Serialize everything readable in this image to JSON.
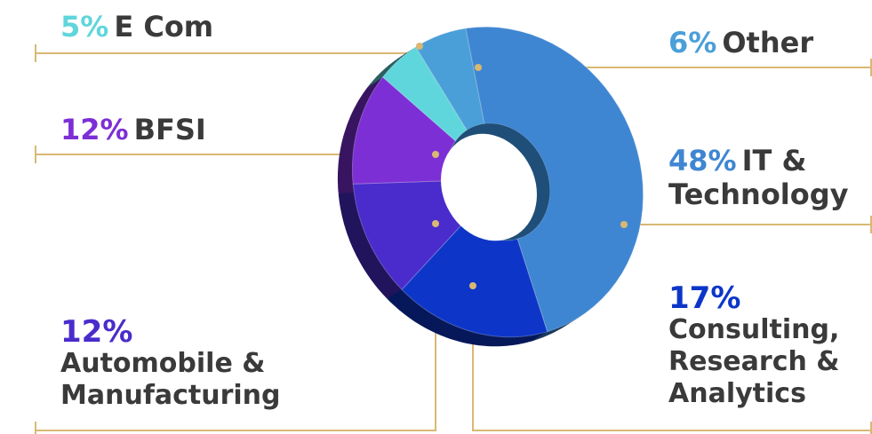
{
  "chart_data": {
    "type": "pie",
    "style": "3d-donut",
    "slices": [
      {
        "label": "E Com",
        "percent_label": "5%",
        "value": 5,
        "color": "#5fd6dc"
      },
      {
        "label": "Other",
        "percent_label": "6%",
        "value": 6,
        "color": "#4a9fd8"
      },
      {
        "label": "IT & Technology",
        "percent_label": "48%",
        "value": 48,
        "color": "#3f86d2"
      },
      {
        "label": "Consulting, Research & Analytics",
        "percent_label": "17%",
        "value": 17,
        "color": "#0d36c8"
      },
      {
        "label": "Automobile & Manufacturing",
        "percent_label": "12%",
        "value": 12,
        "color": "#4a2ccc"
      },
      {
        "label": "BFSI",
        "percent_label": "12%",
        "value": 12,
        "color": "#7d2fd6"
      }
    ],
    "leader_line_color": "#d9b873",
    "text_color": "#3a3a3a"
  },
  "labels": {
    "ecom": {
      "pct": "5%",
      "text": "E Com"
    },
    "other": {
      "pct": "6%",
      "text": "Other"
    },
    "bfsi": {
      "pct": "12%",
      "text": "BFSI"
    },
    "it": {
      "pct": "48%",
      "line1": "IT &",
      "line2": "Technology"
    },
    "auto": {
      "pct": "12%",
      "line1": "Automobile &",
      "line2": "Manufacturing"
    },
    "consult": {
      "pct": "17%",
      "line1": "Consulting,",
      "line2": "Research &",
      "line3": "Analytics"
    }
  }
}
